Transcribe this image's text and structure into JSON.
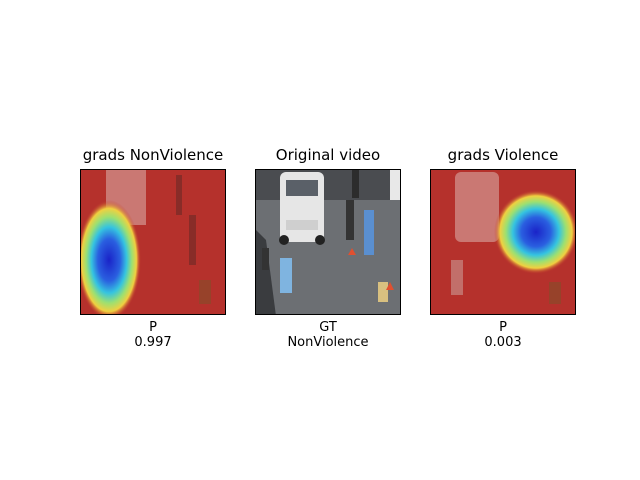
{
  "panels": [
    {
      "title": "grads NonViolence",
      "caption_line1": "P",
      "caption_line2": "0.997"
    },
    {
      "title": "Original video",
      "caption_line1": "GT",
      "caption_line2": "NonViolence"
    },
    {
      "title": "grads Violence",
      "caption_line1": "P",
      "caption_line2": "0.003"
    }
  ],
  "colors": {
    "heat_base": "#b5312c",
    "heat_hot": "#1a23c8",
    "road": "#6c6f73",
    "car": "#e6e6e6"
  }
}
